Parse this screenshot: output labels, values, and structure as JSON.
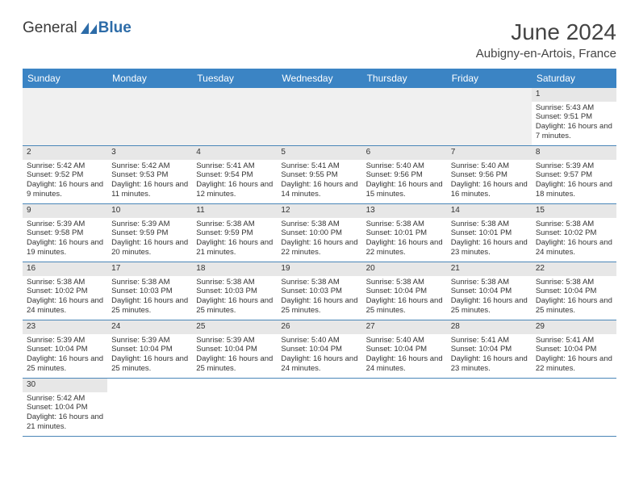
{
  "brand": {
    "part1": "General",
    "part2": "Blue"
  },
  "header": {
    "month": "June 2024",
    "location": "Aubigny-en-Artois, France"
  },
  "weekdays": [
    "Sunday",
    "Monday",
    "Tuesday",
    "Wednesday",
    "Thursday",
    "Friday",
    "Saturday"
  ],
  "colors": {
    "header_bg": "#3b84c4",
    "header_text": "#ffffff",
    "row_divider": "#4a86b8",
    "daynum_bg": "#e7e7e7"
  },
  "layout": {
    "leading_blank_cells": 6
  },
  "days": {
    "1": {
      "sunrise": "5:43 AM",
      "sunset": "9:51 PM",
      "daylight_text": "Daylight: 16 hours and 7 minutes."
    },
    "2": {
      "sunrise": "5:42 AM",
      "sunset": "9:52 PM",
      "daylight_text": "Daylight: 16 hours and 9 minutes."
    },
    "3": {
      "sunrise": "5:42 AM",
      "sunset": "9:53 PM",
      "daylight_text": "Daylight: 16 hours and 11 minutes."
    },
    "4": {
      "sunrise": "5:41 AM",
      "sunset": "9:54 PM",
      "daylight_text": "Daylight: 16 hours and 12 minutes."
    },
    "5": {
      "sunrise": "5:41 AM",
      "sunset": "9:55 PM",
      "daylight_text": "Daylight: 16 hours and 14 minutes."
    },
    "6": {
      "sunrise": "5:40 AM",
      "sunset": "9:56 PM",
      "daylight_text": "Daylight: 16 hours and 15 minutes."
    },
    "7": {
      "sunrise": "5:40 AM",
      "sunset": "9:56 PM",
      "daylight_text": "Daylight: 16 hours and 16 minutes."
    },
    "8": {
      "sunrise": "5:39 AM",
      "sunset": "9:57 PM",
      "daylight_text": "Daylight: 16 hours and 18 minutes."
    },
    "9": {
      "sunrise": "5:39 AM",
      "sunset": "9:58 PM",
      "daylight_text": "Daylight: 16 hours and 19 minutes."
    },
    "10": {
      "sunrise": "5:39 AM",
      "sunset": "9:59 PM",
      "daylight_text": "Daylight: 16 hours and 20 minutes."
    },
    "11": {
      "sunrise": "5:38 AM",
      "sunset": "9:59 PM",
      "daylight_text": "Daylight: 16 hours and 21 minutes."
    },
    "12": {
      "sunrise": "5:38 AM",
      "sunset": "10:00 PM",
      "daylight_text": "Daylight: 16 hours and 22 minutes."
    },
    "13": {
      "sunrise": "5:38 AM",
      "sunset": "10:01 PM",
      "daylight_text": "Daylight: 16 hours and 22 minutes."
    },
    "14": {
      "sunrise": "5:38 AM",
      "sunset": "10:01 PM",
      "daylight_text": "Daylight: 16 hours and 23 minutes."
    },
    "15": {
      "sunrise": "5:38 AM",
      "sunset": "10:02 PM",
      "daylight_text": "Daylight: 16 hours and 24 minutes."
    },
    "16": {
      "sunrise": "5:38 AM",
      "sunset": "10:02 PM",
      "daylight_text": "Daylight: 16 hours and 24 minutes."
    },
    "17": {
      "sunrise": "5:38 AM",
      "sunset": "10:03 PM",
      "daylight_text": "Daylight: 16 hours and 25 minutes."
    },
    "18": {
      "sunrise": "5:38 AM",
      "sunset": "10:03 PM",
      "daylight_text": "Daylight: 16 hours and 25 minutes."
    },
    "19": {
      "sunrise": "5:38 AM",
      "sunset": "10:03 PM",
      "daylight_text": "Daylight: 16 hours and 25 minutes."
    },
    "20": {
      "sunrise": "5:38 AM",
      "sunset": "10:04 PM",
      "daylight_text": "Daylight: 16 hours and 25 minutes."
    },
    "21": {
      "sunrise": "5:38 AM",
      "sunset": "10:04 PM",
      "daylight_text": "Daylight: 16 hours and 25 minutes."
    },
    "22": {
      "sunrise": "5:38 AM",
      "sunset": "10:04 PM",
      "daylight_text": "Daylight: 16 hours and 25 minutes."
    },
    "23": {
      "sunrise": "5:39 AM",
      "sunset": "10:04 PM",
      "daylight_text": "Daylight: 16 hours and 25 minutes."
    },
    "24": {
      "sunrise": "5:39 AM",
      "sunset": "10:04 PM",
      "daylight_text": "Daylight: 16 hours and 25 minutes."
    },
    "25": {
      "sunrise": "5:39 AM",
      "sunset": "10:04 PM",
      "daylight_text": "Daylight: 16 hours and 25 minutes."
    },
    "26": {
      "sunrise": "5:40 AM",
      "sunset": "10:04 PM",
      "daylight_text": "Daylight: 16 hours and 24 minutes."
    },
    "27": {
      "sunrise": "5:40 AM",
      "sunset": "10:04 PM",
      "daylight_text": "Daylight: 16 hours and 24 minutes."
    },
    "28": {
      "sunrise": "5:41 AM",
      "sunset": "10:04 PM",
      "daylight_text": "Daylight: 16 hours and 23 minutes."
    },
    "29": {
      "sunrise": "5:41 AM",
      "sunset": "10:04 PM",
      "daylight_text": "Daylight: 16 hours and 22 minutes."
    },
    "30": {
      "sunrise": "5:42 AM",
      "sunset": "10:04 PM",
      "daylight_text": "Daylight: 16 hours and 21 minutes."
    }
  },
  "labels": {
    "sunrise_prefix": "Sunrise: ",
    "sunset_prefix": "Sunset: "
  }
}
